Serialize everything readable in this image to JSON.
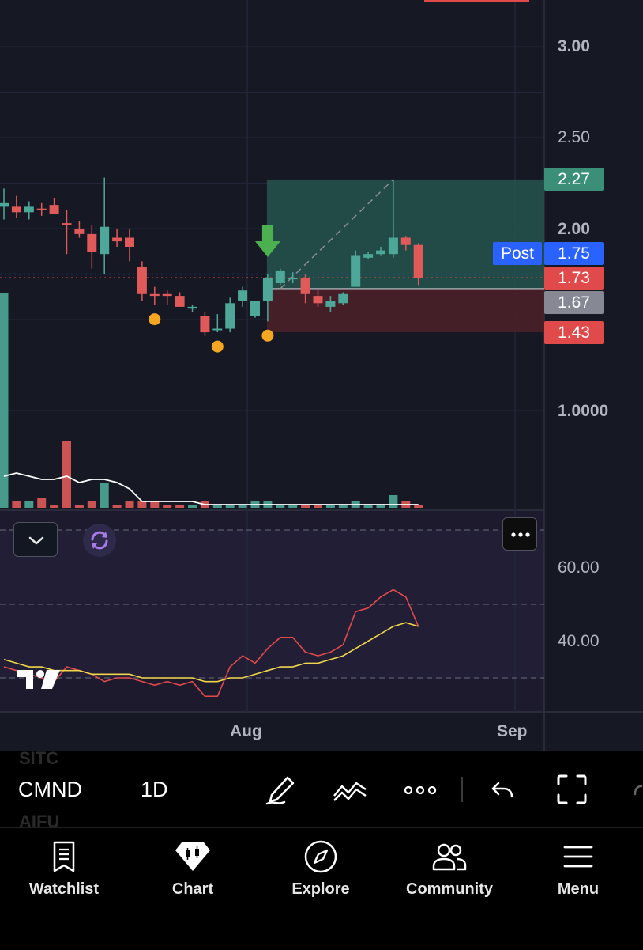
{
  "price_axis": {
    "labels": [
      "3.00",
      "2.50",
      "2.00",
      "1.0000"
    ],
    "badges": {
      "target": {
        "value": "2.27",
        "color": "#3b8f78"
      },
      "post_tag": {
        "label": "Post",
        "color": "#2962ff"
      },
      "post": {
        "value": "1.75",
        "color": "#2962ff"
      },
      "last": {
        "value": "1.73",
        "color": "#e04a4a"
      },
      "entry": {
        "value": "1.67",
        "color": "#868993"
      },
      "stop": {
        "value": "1.43",
        "color": "#e04a4a"
      }
    }
  },
  "time_axis": {
    "labels": [
      "Aug",
      "Sep"
    ]
  },
  "rsi_axis": {
    "labels": [
      "60.00",
      "40.00"
    ]
  },
  "colors": {
    "up": "#4ea899",
    "down": "#e05a5a",
    "marker": "#f5a623",
    "arrow": "#4caf50",
    "rsi": "#e04a4a",
    "rsi_ma": "#f0d54a"
  },
  "toolbar": {
    "symbol": "CMND",
    "interval": "1D",
    "ghost_symbols": [
      "SITC",
      "AIFU"
    ],
    "icons": [
      "draw-pen-icon",
      "indicator-icon",
      "more-dots-icon",
      "undo-icon",
      "fullscreen-icon"
    ]
  },
  "pane_controls": {
    "collapse_icon": "chevron-down-icon",
    "sync_icon": "sync-icon",
    "more_icon": "more-dots-icon"
  },
  "nav": {
    "items": [
      {
        "label": "Watchlist",
        "icon": "watchlist-icon"
      },
      {
        "label": "Chart",
        "icon": "chart-icon"
      },
      {
        "label": "Explore",
        "icon": "compass-icon"
      },
      {
        "label": "Community",
        "icon": "community-icon"
      },
      {
        "label": "Menu",
        "icon": "menu-icon"
      }
    ]
  },
  "chart_data": {
    "type": "candlestick",
    "title": "",
    "y_axis_labels": [
      3.0,
      2.5,
      2.0,
      1.0
    ],
    "x_axis_labels": [
      "Aug",
      "Sep"
    ],
    "candles": [
      {
        "o": 2.12,
        "h": 2.22,
        "l": 2.05,
        "c": 2.14
      },
      {
        "o": 2.12,
        "h": 2.18,
        "l": 2.06,
        "c": 2.09
      },
      {
        "o": 2.09,
        "h": 2.15,
        "l": 2.05,
        "c": 2.12
      },
      {
        "o": 2.11,
        "h": 2.14,
        "l": 2.07,
        "c": 2.1
      },
      {
        "o": 2.13,
        "h": 2.17,
        "l": 2.08,
        "c": 2.08
      },
      {
        "o": 2.03,
        "h": 2.1,
        "l": 1.86,
        "c": 2.02
      },
      {
        "o": 2.0,
        "h": 2.04,
        "l": 1.95,
        "c": 1.97
      },
      {
        "o": 1.97,
        "h": 2.02,
        "l": 1.78,
        "c": 1.87
      },
      {
        "o": 1.86,
        "h": 2.28,
        "l": 1.75,
        "c": 2.01
      },
      {
        "o": 1.95,
        "h": 2.0,
        "l": 1.9,
        "c": 1.93
      },
      {
        "o": 1.95,
        "h": 2.0,
        "l": 1.82,
        "c": 1.9
      },
      {
        "o": 1.79,
        "h": 1.82,
        "l": 1.6,
        "c": 1.64
      },
      {
        "o": 1.64,
        "h": 1.68,
        "l": 1.58,
        "c": 1.63
      },
      {
        "o": 1.64,
        "h": 1.66,
        "l": 1.58,
        "c": 1.63
      },
      {
        "o": 1.63,
        "h": 1.65,
        "l": 1.57,
        "c": 1.57
      },
      {
        "o": 1.56,
        "h": 1.58,
        "l": 1.54,
        "c": 1.57
      },
      {
        "o": 1.52,
        "h": 1.54,
        "l": 1.41,
        "c": 1.43
      },
      {
        "o": 1.45,
        "h": 1.53,
        "l": 1.43,
        "c": 1.45
      },
      {
        "o": 1.45,
        "h": 1.62,
        "l": 1.43,
        "c": 1.59
      },
      {
        "o": 1.6,
        "h": 1.68,
        "l": 1.57,
        "c": 1.66
      },
      {
        "o": 1.52,
        "h": 1.6,
        "l": 1.51,
        "c": 1.6
      },
      {
        "o": 1.6,
        "h": 1.75,
        "l": 1.49,
        "c": 1.73
      },
      {
        "o": 1.7,
        "h": 1.78,
        "l": 1.69,
        "c": 1.77
      },
      {
        "o": 1.73,
        "h": 1.76,
        "l": 1.7,
        "c": 1.73
      },
      {
        "o": 1.73,
        "h": 1.75,
        "l": 1.59,
        "c": 1.64
      },
      {
        "o": 1.63,
        "h": 1.66,
        "l": 1.57,
        "c": 1.59
      },
      {
        "o": 1.57,
        "h": 1.63,
        "l": 1.54,
        "c": 1.6
      },
      {
        "o": 1.59,
        "h": 1.65,
        "l": 1.58,
        "c": 1.64
      },
      {
        "o": 1.68,
        "h": 1.88,
        "l": 1.68,
        "c": 1.85
      },
      {
        "o": 1.84,
        "h": 1.87,
        "l": 1.83,
        "c": 1.86
      },
      {
        "o": 1.86,
        "h": 1.9,
        "l": 1.85,
        "c": 1.88
      },
      {
        "o": 1.86,
        "h": 2.27,
        "l": 1.84,
        "c": 1.95
      },
      {
        "o": 1.95,
        "h": 1.96,
        "l": 1.88,
        "c": 1.91
      },
      {
        "o": 1.91,
        "h": 1.92,
        "l": 1.69,
        "c": 1.73
      }
    ],
    "volumes": [
      0.68,
      0.02,
      0.02,
      0.03,
      0.01,
      0.21,
      0.01,
      0.02,
      0.08,
      0.01,
      0.02,
      0.02,
      0.02,
      0.01,
      0.01,
      0.01,
      0.02,
      0.01,
      0.01,
      0.01,
      0.02,
      0.02,
      0.01,
      0.01,
      0.01,
      0.01,
      0.01,
      0.01,
      0.02,
      0.01,
      0.01,
      0.04,
      0.02,
      0.01
    ],
    "volume_ma": [
      0.1,
      0.11,
      0.1,
      0.09,
      0.09,
      0.1,
      0.08,
      0.09,
      0.09,
      0.08,
      0.06,
      0.02,
      0.02,
      0.02,
      0.02,
      0.02,
      0.01,
      0.01,
      0.01,
      0.01,
      0.01,
      0.01,
      0.01,
      0.01,
      0.01,
      0.01,
      0.01,
      0.01,
      0.01,
      0.01,
      0.01,
      0.01,
      0.01,
      0.01
    ],
    "rsi": [
      33,
      32,
      31,
      30,
      29,
      33,
      32,
      31,
      29,
      30,
      30,
      29,
      28,
      29,
      28,
      29,
      25,
      25,
      33,
      36,
      34,
      38,
      41,
      41,
      37,
      36,
      37,
      39,
      48,
      49,
      52,
      54,
      52,
      44
    ],
    "rsi_ma": [
      35,
      34,
      33,
      33,
      32,
      32,
      32,
      31,
      31,
      31,
      31,
      30,
      30,
      30,
      30,
      30,
      29,
      29,
      30,
      30,
      31,
      32,
      33,
      33,
      34,
      34,
      35,
      36,
      38,
      40,
      42,
      44,
      45,
      44
    ],
    "rsi_ylabels": [
      60,
      40
    ],
    "markers": [
      {
        "index": 12,
        "below": true
      },
      {
        "index": 17,
        "below": true
      },
      {
        "index": 21,
        "below": true
      }
    ],
    "position": {
      "target": 2.27,
      "entry": 1.67,
      "stop": 1.43
    }
  }
}
